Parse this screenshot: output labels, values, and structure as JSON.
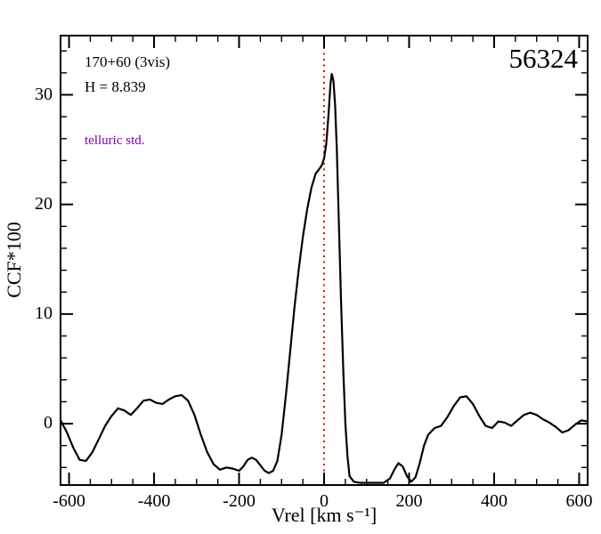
{
  "figure": {
    "annotations": {
      "target_label": "170+60 (3vis)",
      "h_mag": "H = 8.839",
      "telluric": "telluric std.",
      "mjd": "56324"
    },
    "colors": {
      "line": "#000000",
      "zero_line": "#dd1100",
      "telluric_text": "#7a00a8",
      "frame": "#000000",
      "background": "#ffffff"
    }
  },
  "chart_data": {
    "type": "line",
    "title": "",
    "xlabel": "Vrel [km s⁻¹]",
    "ylabel": "CCF*100",
    "xlim": [
      -620,
      620
    ],
    "ylim": [
      -5.6,
      35.4
    ],
    "grid": false,
    "legend": "none",
    "vline_x": 0,
    "x_minor_step": 50,
    "y_minor_step": 2,
    "x_ticks": [
      {
        "v": -600,
        "label": "-600"
      },
      {
        "v": -400,
        "label": "-400"
      },
      {
        "v": -200,
        "label": "-200"
      },
      {
        "v": 0,
        "label": "0"
      },
      {
        "v": 200,
        "label": "200"
      },
      {
        "v": 400,
        "label": "400"
      },
      {
        "v": 600,
        "label": "600"
      }
    ],
    "y_ticks": [
      {
        "v": 0,
        "label": "0"
      },
      {
        "v": 10,
        "label": "10"
      },
      {
        "v": 20,
        "label": "20"
      },
      {
        "v": 30,
        "label": "30"
      }
    ],
    "series": [
      {
        "name": "ccf",
        "points": [
          [
            -620,
            0.3
          ],
          [
            -605,
            -0.8
          ],
          [
            -590,
            -2.2
          ],
          [
            -575,
            -3.3
          ],
          [
            -560,
            -3.4
          ],
          [
            -545,
            -2.6
          ],
          [
            -530,
            -1.4
          ],
          [
            -515,
            -0.2
          ],
          [
            -500,
            0.7
          ],
          [
            -485,
            1.4
          ],
          [
            -470,
            1.2
          ],
          [
            -455,
            0.8
          ],
          [
            -440,
            1.4
          ],
          [
            -425,
            2.1
          ],
          [
            -410,
            2.2
          ],
          [
            -395,
            1.9
          ],
          [
            -380,
            1.8
          ],
          [
            -365,
            2.2
          ],
          [
            -350,
            2.5
          ],
          [
            -335,
            2.6
          ],
          [
            -320,
            2.1
          ],
          [
            -305,
            0.8
          ],
          [
            -290,
            -1.0
          ],
          [
            -275,
            -2.6
          ],
          [
            -260,
            -3.7
          ],
          [
            -245,
            -4.2
          ],
          [
            -230,
            -4.0
          ],
          [
            -215,
            -4.1
          ],
          [
            -200,
            -4.3
          ],
          [
            -190,
            -3.9
          ],
          [
            -180,
            -3.3
          ],
          [
            -170,
            -3.1
          ],
          [
            -160,
            -3.3
          ],
          [
            -150,
            -3.8
          ],
          [
            -140,
            -4.3
          ],
          [
            -130,
            -4.5
          ],
          [
            -120,
            -4.3
          ],
          [
            -110,
            -3.4
          ],
          [
            -100,
            -1.0
          ],
          [
            -90,
            2.5
          ],
          [
            -80,
            6.5
          ],
          [
            -70,
            10.5
          ],
          [
            -60,
            14.0
          ],
          [
            -50,
            17.0
          ],
          [
            -40,
            19.5
          ],
          [
            -30,
            21.5
          ],
          [
            -20,
            22.8
          ],
          [
            -10,
            23.3
          ],
          [
            -5,
            23.6
          ],
          [
            0,
            24.2
          ],
          [
            5,
            25.5
          ],
          [
            10,
            28.0
          ],
          [
            15,
            31.0
          ],
          [
            18,
            31.9
          ],
          [
            22,
            31.3
          ],
          [
            26,
            29.0
          ],
          [
            30,
            25.0
          ],
          [
            35,
            18.0
          ],
          [
            40,
            11.0
          ],
          [
            45,
            5.0
          ],
          [
            50,
            0.0
          ],
          [
            55,
            -3.0
          ],
          [
            60,
            -4.8
          ],
          [
            70,
            -5.3
          ],
          [
            85,
            -5.4
          ],
          [
            100,
            -5.4
          ],
          [
            120,
            -5.4
          ],
          [
            140,
            -5.4
          ],
          [
            155,
            -5.0
          ],
          [
            165,
            -4.2
          ],
          [
            175,
            -3.6
          ],
          [
            185,
            -3.9
          ],
          [
            195,
            -4.8
          ],
          [
            205,
            -5.3
          ],
          [
            215,
            -4.9
          ],
          [
            225,
            -3.6
          ],
          [
            235,
            -2.0
          ],
          [
            245,
            -1.0
          ],
          [
            260,
            -0.4
          ],
          [
            275,
            -0.2
          ],
          [
            290,
            0.6
          ],
          [
            305,
            1.6
          ],
          [
            320,
            2.4
          ],
          [
            335,
            2.5
          ],
          [
            350,
            1.8
          ],
          [
            365,
            0.7
          ],
          [
            380,
            -0.2
          ],
          [
            395,
            -0.4
          ],
          [
            410,
            0.2
          ],
          [
            425,
            0.1
          ],
          [
            440,
            -0.2
          ],
          [
            455,
            0.3
          ],
          [
            470,
            0.8
          ],
          [
            485,
            1.0
          ],
          [
            500,
            0.8
          ],
          [
            515,
            0.4
          ],
          [
            530,
            0.1
          ],
          [
            545,
            -0.3
          ],
          [
            560,
            -0.8
          ],
          [
            575,
            -0.6
          ],
          [
            590,
            -0.1
          ],
          [
            605,
            0.3
          ],
          [
            620,
            0.2
          ]
        ]
      }
    ]
  }
}
